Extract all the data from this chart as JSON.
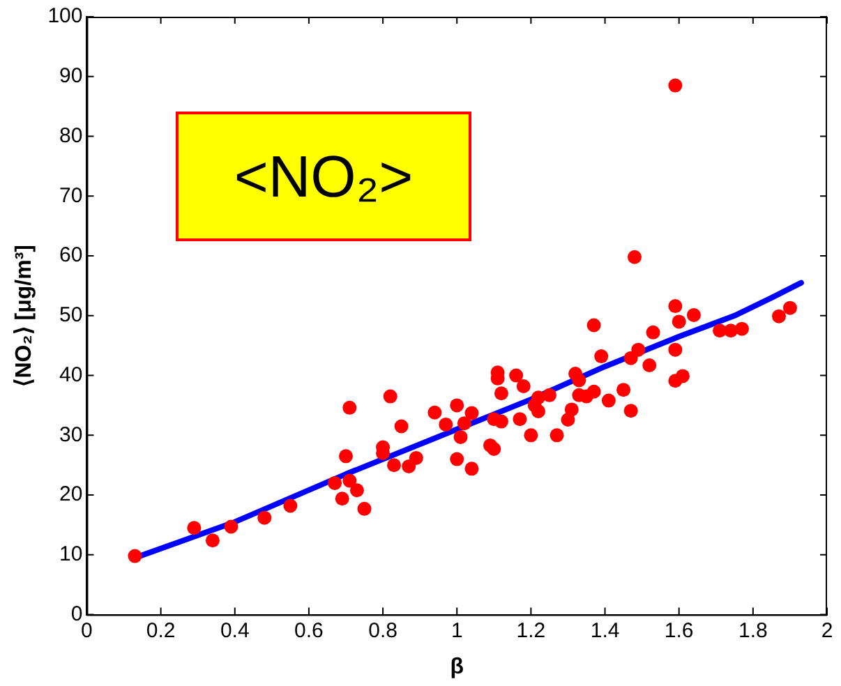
{
  "chart_data": {
    "type": "scatter",
    "xlabel": "β",
    "ylabel": "⟨NO₂⟩ [μg/m³]",
    "annotations": [
      "<NO₂>"
    ],
    "xlim": [
      0,
      2
    ],
    "xticks": [
      0,
      0.2,
      0.4,
      0.6,
      0.8,
      1,
      1.2,
      1.4,
      1.6,
      1.8,
      2
    ],
    "ylim": [
      0,
      100
    ],
    "yticks": [
      0,
      10,
      20,
      30,
      40,
      50,
      60,
      70,
      80,
      90,
      100
    ],
    "grid": false,
    "legend": false,
    "series": [
      {
        "type": "scatter",
        "color": "#ff0000",
        "marker": "circle",
        "x": [
          0.13,
          0.29,
          0.34,
          0.39,
          0.48,
          0.55,
          0.67,
          0.69,
          0.7,
          0.71,
          0.71,
          0.73,
          0.75,
          0.8,
          0.8,
          0.82,
          0.83,
          0.85,
          0.87,
          0.89,
          0.94,
          0.97,
          1.0,
          1.0,
          1.01,
          1.02,
          1.04,
          1.04,
          1.09,
          1.1,
          1.1,
          1.11,
          1.11,
          1.12,
          1.12,
          1.16,
          1.17,
          1.18,
          1.2,
          1.21,
          1.22,
          1.22,
          1.25,
          1.27,
          1.3,
          1.31,
          1.32,
          1.33,
          1.33,
          1.35,
          1.37,
          1.37,
          1.39,
          1.41,
          1.45,
          1.47,
          1.47,
          1.48,
          1.49,
          1.52,
          1.53,
          1.59,
          1.59,
          1.59,
          1.59,
          1.6,
          1.61,
          1.64,
          1.71,
          1.74,
          1.77,
          1.87,
          1.9
        ],
        "values": [
          9.8,
          14.5,
          12.4,
          14.7,
          16.2,
          18.2,
          22,
          19.4,
          26.5,
          34.6,
          22.4,
          20.8,
          17.7,
          28,
          27,
          36.5,
          25,
          31.5,
          24.8,
          26.2,
          33.8,
          31.8,
          26,
          35,
          29.7,
          32,
          33.7,
          24.4,
          28.3,
          32.7,
          27.7,
          40.5,
          39.5,
          37,
          32.3,
          40,
          32.7,
          38.2,
          30,
          35,
          36.3,
          34,
          36.7,
          30,
          32.6,
          34.3,
          40.3,
          36.7,
          39.2,
          36.5,
          48.4,
          37.3,
          43.2,
          35.8,
          37.6,
          34.1,
          42.9,
          59.8,
          44.3,
          41.7,
          47.2,
          51.6,
          44.3,
          39.1,
          88.5,
          49,
          39.9,
          50.1,
          47.5,
          47.5,
          47.8,
          49.9,
          51.3
        ]
      },
      {
        "type": "line",
        "color": "#0000ff",
        "marker": "none",
        "line_style": "solid",
        "x": [
          0.13,
          0.4,
          0.55,
          0.7,
          1.0,
          1.2,
          1.4,
          1.6,
          1.75,
          1.85,
          1.93
        ],
        "values": [
          9.5,
          15.5,
          19.5,
          23.5,
          31,
          36,
          41.5,
          46.5,
          50,
          53,
          55.5
        ]
      }
    ]
  }
}
